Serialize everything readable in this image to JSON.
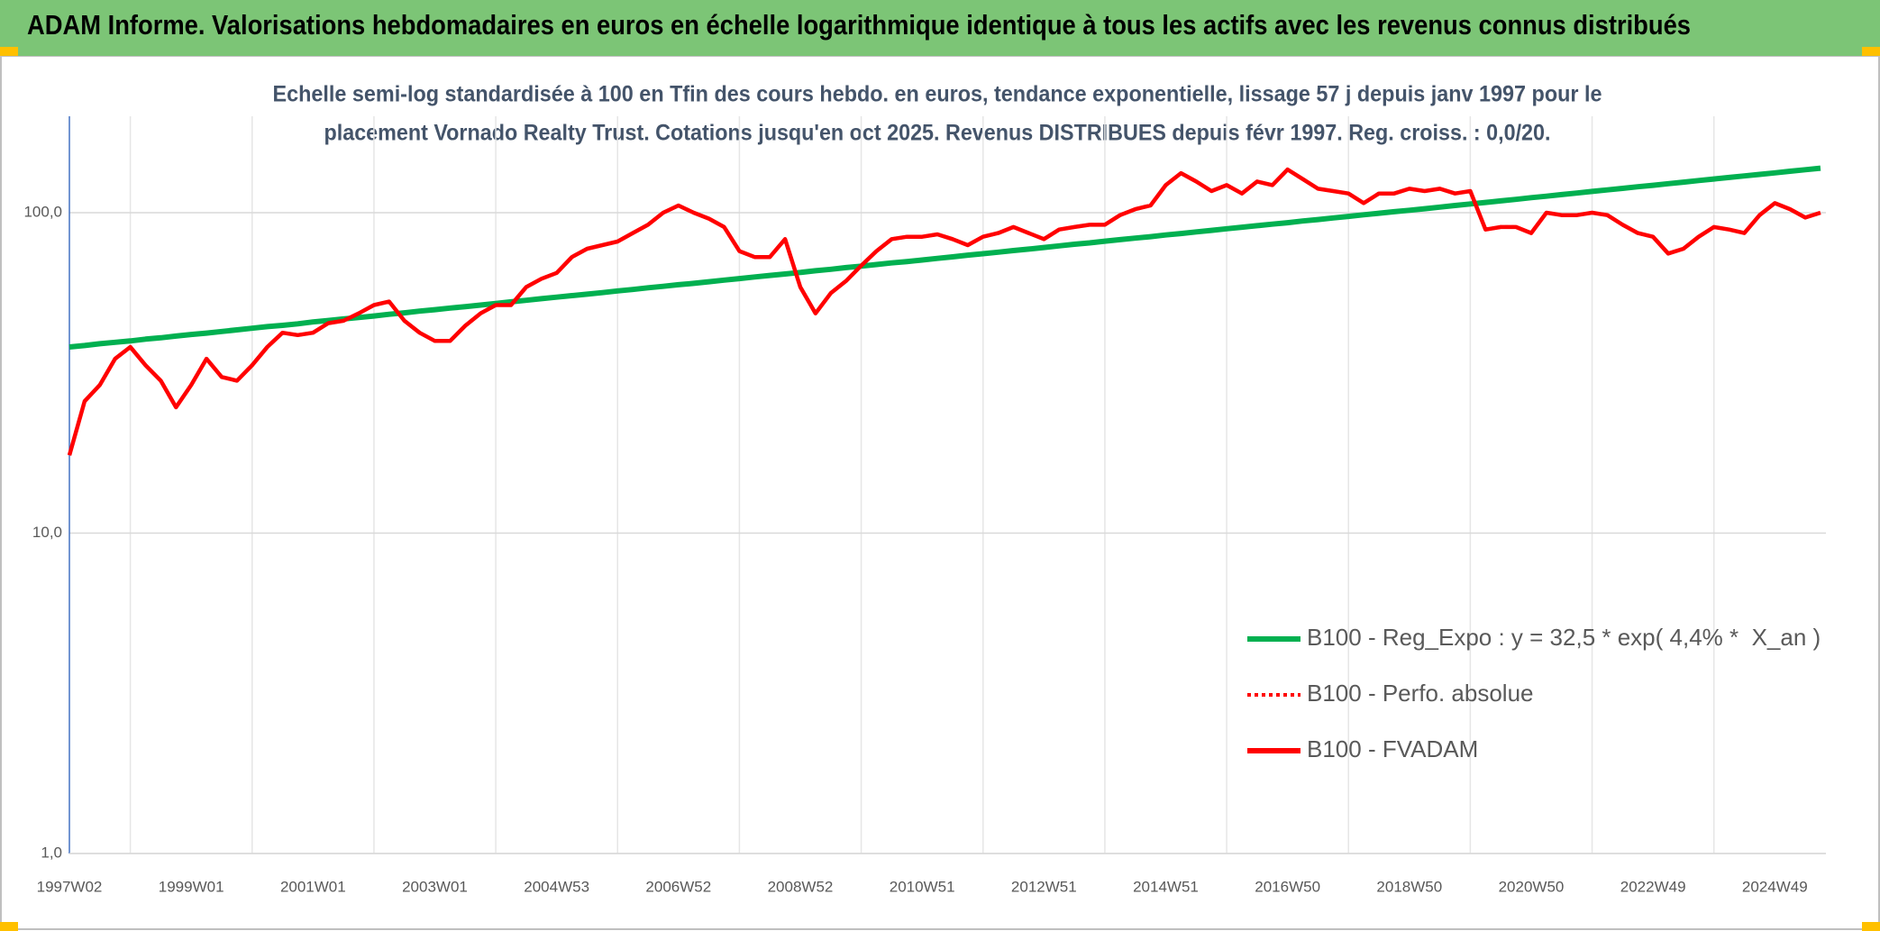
{
  "chart_data": {
    "type": "line",
    "title": "ADAM Informe. Valorisations hebdomadaires en euros en échelle logarithmique identique à tous les actifs avec les revenus connus distribués",
    "subtitle": [
      "Echelle semi-log standardisée à 100 en Tfin des cours hebdo. en euros, tendance exponentielle, lissage 57 j depuis janv 1997 pour le",
      "placement Vornado Realty Trust. Cotations jusqu'en oct 2025. Revenus DISTRIBUES depuis févr 1997. Reg. croiss. : 0,0/20."
    ],
    "log_scale": true,
    "grid": true,
    "legend": "lower right",
    "ylim": [
      1,
      200
    ],
    "yticks": [
      {
        "value": 1,
        "label": "1,0"
      },
      {
        "value": 10,
        "label": "10,0"
      },
      {
        "value": 100,
        "label": "100,0"
      }
    ],
    "categories": [
      "1997W02",
      null,
      null,
      null,
      null,
      null,
      null,
      null,
      "1999W01",
      null,
      null,
      null,
      null,
      null,
      null,
      null,
      "2001W01",
      null,
      null,
      null,
      null,
      null,
      null,
      null,
      "2003W01",
      null,
      null,
      null,
      null,
      null,
      null,
      null,
      "2004W53",
      null,
      null,
      null,
      null,
      null,
      null,
      null,
      "2006W52",
      null,
      null,
      null,
      null,
      null,
      null,
      null,
      "2008W52",
      null,
      null,
      null,
      null,
      null,
      null,
      null,
      "2010W51",
      null,
      null,
      null,
      null,
      null,
      null,
      null,
      "2012W51",
      null,
      null,
      null,
      null,
      null,
      null,
      null,
      "2014W51",
      null,
      null,
      null,
      null,
      null,
      null,
      null,
      "2016W50",
      null,
      null,
      null,
      null,
      null,
      null,
      null,
      "2018W50",
      null,
      null,
      null,
      null,
      null,
      null,
      null,
      "2020W50",
      null,
      null,
      null,
      null,
      null,
      null,
      null,
      "2022W49",
      null,
      null,
      null,
      null,
      null,
      null,
      null,
      "2024W49",
      null,
      null,
      null
    ],
    "series": [
      {
        "name": "B100 - Reg_Expo : y = 32,5 * exp( 4,4% *  X_an )",
        "color": "#00b050",
        "style": "solid",
        "values": [
          38.1,
          38.5,
          39.0,
          39.4,
          39.8,
          40.3,
          40.7,
          41.2,
          41.7,
          42.1,
          42.6,
          43.1,
          43.6,
          44.1,
          44.5,
          45.0,
          45.6,
          46.1,
          46.6,
          47.1,
          47.6,
          48.2,
          48.7,
          49.3,
          49.8,
          50.4,
          50.9,
          51.5,
          52.1,
          52.7,
          53.3,
          53.9,
          54.5,
          55.1,
          55.7,
          56.3,
          57.0,
          57.6,
          58.3,
          58.9,
          59.6,
          60.2,
          60.9,
          61.6,
          62.3,
          63.0,
          63.7,
          64.4,
          65.1,
          65.9,
          66.6,
          67.4,
          68.1,
          68.9,
          69.7,
          70.4,
          71.2,
          72.0,
          72.8,
          73.7,
          74.5,
          75.3,
          76.2,
          77.0,
          77.9,
          78.8,
          79.7,
          80.5,
          81.5,
          82.4,
          83.3,
          84.2,
          85.2,
          86.1,
          87.1,
          88.1,
          89.1,
          90.1,
          91.1,
          92.1,
          93.1,
          94.2,
          95.2,
          96.3,
          97.4,
          98.5,
          99.6,
          100.7,
          101.8,
          102.9,
          104.1,
          105.3,
          106.5,
          107.7,
          108.9,
          110.1,
          111.4,
          112.6,
          113.9,
          115.2,
          116.5,
          117.8,
          119.1,
          120.5,
          121.8,
          123.2,
          124.6,
          126.0,
          127.4,
          128.8,
          130.3,
          131.7,
          133.2,
          134.7,
          136.2,
          137.7
        ]
      },
      {
        "name": "B100 - Perfo. absolue",
        "color": "#ff0000",
        "style": "dotted",
        "values": [
          17.5,
          25.8,
          29.0,
          35.0,
          38.1,
          33.4,
          29.9,
          24.7,
          29.0,
          35.0,
          30.7,
          29.9,
          33.4,
          38.1,
          42.2,
          41.5,
          42.2,
          45.2,
          46.0,
          48.5,
          51.5,
          52.8,
          46.0,
          42.2,
          39.8,
          39.8,
          44.4,
          48.5,
          51.5,
          51.5,
          58.6,
          62.2,
          64.9,
          72.7,
          77.2,
          79.2,
          81.3,
          86.4,
          91.7,
          100,
          105.3,
          100,
          95.8,
          90.2,
          75.9,
          72.7,
          72.7,
          82.7,
          58.6,
          48.5,
          56.1,
          61.2,
          68.4,
          75.9,
          82.7,
          84.1,
          84.1,
          85.6,
          82.7,
          79.2,
          84.1,
          86.4,
          90.2,
          86.4,
          82.7,
          88.6,
          90.2,
          91.7,
          91.7,
          98.3,
          102.6,
          105.3,
          121.9,
          132.9,
          125.1,
          116.8,
          121.9,
          114.8,
          125.1,
          121.9,
          136.4,
          127.3,
          118.8,
          116.8,
          114.8,
          107.1,
          114.8,
          114.8,
          118.8,
          116.8,
          118.8,
          114.8,
          116.8,
          88.6,
          90.2,
          90.2,
          86.4,
          100,
          98.3,
          98.3,
          100,
          98.3,
          91.7,
          86.4,
          84.1,
          74.6,
          77.2,
          84.1,
          90.2,
          88.6,
          86.4,
          98.3,
          107.1,
          102.6,
          96.6,
          100
        ]
      },
      {
        "name": "B100 - FVADAM",
        "color": "#ff0000",
        "style": "solid",
        "values": [
          17.5,
          25.8,
          29.0,
          35.0,
          38.1,
          33.4,
          29.9,
          24.7,
          29.0,
          35.0,
          30.7,
          29.9,
          33.4,
          38.1,
          42.2,
          41.5,
          42.2,
          45.2,
          46.0,
          48.5,
          51.5,
          52.8,
          46.0,
          42.2,
          39.8,
          39.8,
          44.4,
          48.5,
          51.5,
          51.5,
          58.6,
          62.2,
          64.9,
          72.7,
          77.2,
          79.2,
          81.3,
          86.4,
          91.7,
          100,
          105.3,
          100,
          95.8,
          90.2,
          75.9,
          72.7,
          72.7,
          82.7,
          58.6,
          48.5,
          56.1,
          61.2,
          68.4,
          75.9,
          82.7,
          84.1,
          84.1,
          85.6,
          82.7,
          79.2,
          84.1,
          86.4,
          90.2,
          86.4,
          82.7,
          88.6,
          90.2,
          91.7,
          91.7,
          98.3,
          102.6,
          105.3,
          121.9,
          132.9,
          125.1,
          116.8,
          121.9,
          114.8,
          125.1,
          121.9,
          136.4,
          127.3,
          118.8,
          116.8,
          114.8,
          107.1,
          114.8,
          114.8,
          118.8,
          116.8,
          118.8,
          114.8,
          116.8,
          88.6,
          90.2,
          90.2,
          86.4,
          100,
          98.3,
          98.3,
          100,
          98.3,
          91.7,
          86.4,
          84.1,
          74.6,
          77.2,
          84.1,
          90.2,
          88.6,
          86.4,
          98.3,
          107.1,
          102.6,
          96.6,
          100
        ]
      }
    ]
  }
}
